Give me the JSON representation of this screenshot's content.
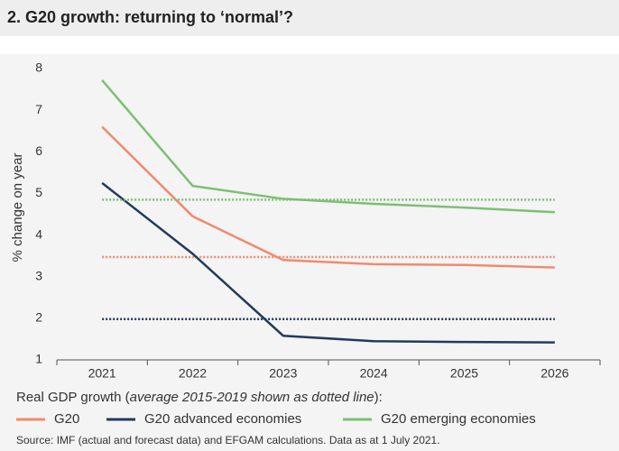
{
  "chart_data": {
    "type": "line",
    "title": "2. G20 growth: returning to ‘normal’?",
    "y_label": "% change on year",
    "categories": [
      "2021",
      "2022",
      "2023",
      "2024",
      "2025",
      "2026"
    ],
    "ylim": [
      1,
      8
    ],
    "yticks": [
      1,
      2,
      3,
      4,
      5,
      6,
      7,
      8
    ],
    "series": [
      {
        "name": "G20",
        "color": "#f08a6c",
        "values": [
          6.6,
          4.45,
          3.4,
          3.3,
          3.28,
          3.22
        ],
        "average": 3.47
      },
      {
        "name": "G20 advanced economies",
        "color": "#233a5e",
        "values": [
          5.25,
          3.55,
          1.58,
          1.45,
          1.43,
          1.42
        ],
        "average": 1.98
      },
      {
        "name": "G20 emerging economies",
        "color": "#7dbf73",
        "values": [
          7.72,
          5.18,
          4.87,
          4.75,
          4.66,
          4.55
        ],
        "average": 4.85
      }
    ],
    "legend_note": [
      "Real GDP growth (",
      "average 2015-2019 shown as dotted line",
      "):"
    ],
    "source": "Source: IMF (actual and forecast data) and EFGAM calculations. Data as at 1 July 2021."
  }
}
